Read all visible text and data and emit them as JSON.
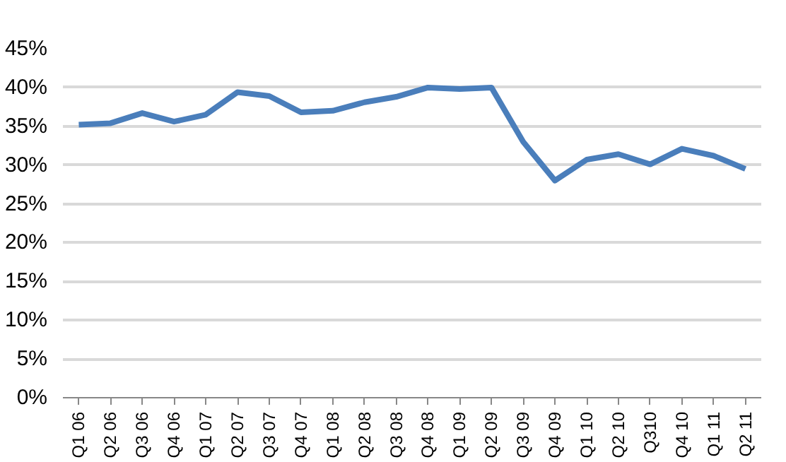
{
  "chart_data": {
    "type": "line",
    "categories": [
      "Q1 06",
      "Q2 06",
      "Q3 06",
      "Q4 06",
      "Q1 07",
      "Q2 07",
      "Q3 07",
      "Q4 07",
      "Q1 08",
      "Q2 08",
      "Q3 08",
      "Q4 08",
      "Q1 09",
      "Q2 09",
      "Q3 09",
      "Q4 09",
      "Q1 10",
      "Q2 10",
      "Q310",
      "Q4 10",
      "Q1 11",
      "Q2 11"
    ],
    "series": [
      {
        "color": "#4a7ebb",
        "values": [
          35.2,
          35.4,
          36.7,
          35.6,
          36.5,
          39.4,
          38.9,
          36.8,
          37.0,
          38.1,
          38.8,
          40.0,
          39.8,
          40.0,
          33.0,
          28.0,
          30.7,
          31.4,
          30.1,
          32.1,
          31.2,
          29.5
        ]
      }
    ],
    "ylim": [
      0,
      45
    ],
    "yticks": [
      {
        "value": 0,
        "label": "0%"
      },
      {
        "value": 5,
        "label": "5%"
      },
      {
        "value": 10,
        "label": "10%"
      },
      {
        "value": 15,
        "label": "15%"
      },
      {
        "value": 20,
        "label": "20%"
      },
      {
        "value": 25,
        "label": "25%"
      },
      {
        "value": 30,
        "label": "30%"
      },
      {
        "value": 35,
        "label": "35%"
      },
      {
        "value": 40,
        "label": "40%"
      },
      {
        "value": 45,
        "label": "45%"
      }
    ],
    "grid": "y",
    "marker": "none",
    "line_style": "solid"
  }
}
